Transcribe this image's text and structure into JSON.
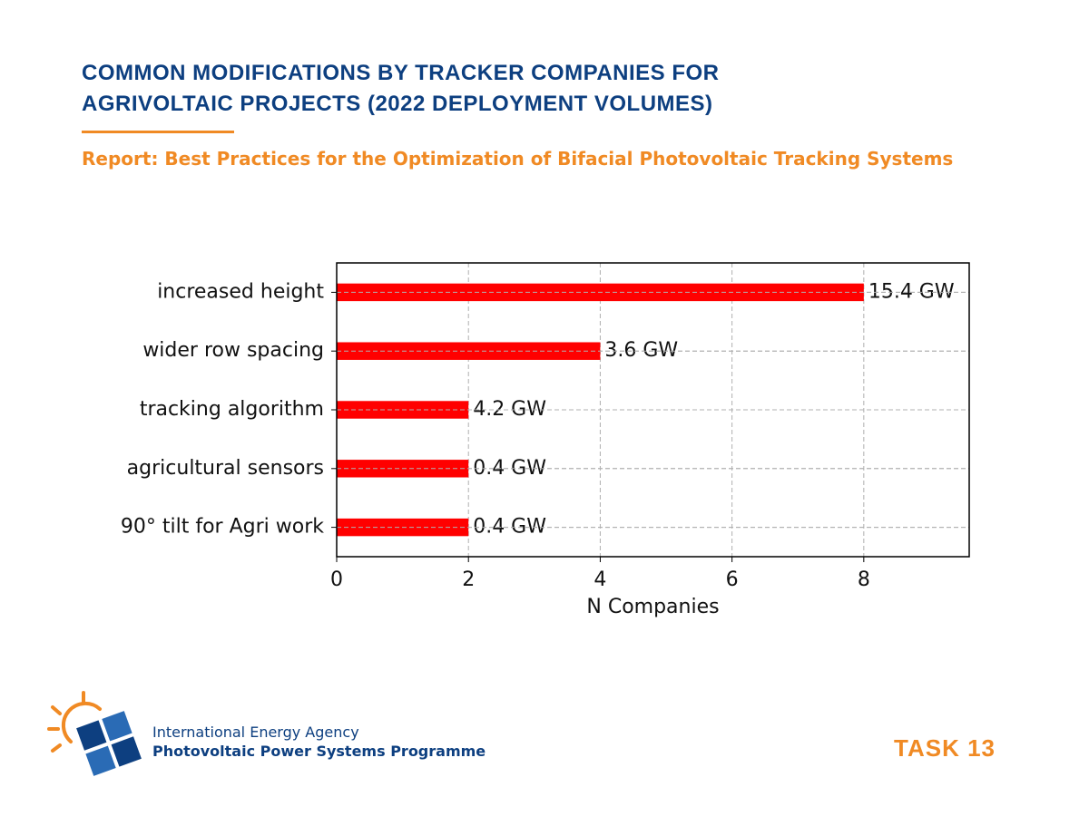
{
  "chart_data": {
    "type": "barh",
    "title": "COMMON MODIFICATIONS BY TRACKER COMPANIES FOR AGRIVOLTAIC PROJECTS (2022 DEPLOYMENT VOLUMES)",
    "subtitle": "Report: Best Practices for the Optimization of Bifacial Photovoltaic Tracking Systems",
    "categories": [
      "increased height",
      "wider row spacing",
      "tracking algorithm",
      "agricultural sensors",
      "90° tilt for Agri work"
    ],
    "values": [
      8,
      4,
      2,
      2,
      2
    ],
    "annotations": [
      "15.4 GW",
      "3.6 GW",
      "4.2 GW",
      "0.4 GW",
      "0.4 GW"
    ],
    "color": "#ff0000",
    "xlabel": "N Companies",
    "xlim": [
      0,
      9.6
    ],
    "xticks": [
      0,
      2,
      4,
      6,
      8
    ],
    "grid": true
  },
  "footer": {
    "organization": "International Energy Agency",
    "programme": "Photovoltaic Power Systems Programme",
    "task": "TASK 13"
  }
}
